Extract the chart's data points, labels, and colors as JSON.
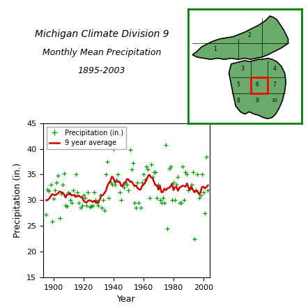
{
  "title_line1": "Michigan Climate Division 9",
  "title_line2": "Monthly Mean Precipitation",
  "title_line3": "1895-2003",
  "xlabel": "Year",
  "ylabel": "Precipitation (in.)",
  "xlim": [
    1893,
    2004
  ],
  "ylim": [
    15,
    45
  ],
  "yticks": [
    15,
    20,
    25,
    30,
    35,
    40,
    45
  ],
  "xticks": [
    1900,
    1920,
    1940,
    1960,
    1980,
    2000
  ],
  "legend_dot_label": "Precipitation (in.)",
  "legend_line_label": "9 year average",
  "dot_color": "#009900",
  "line_color": "#cc0000",
  "background_color": "#ffffff",
  "years": [
    1895,
    1896,
    1897,
    1898,
    1899,
    1900,
    1901,
    1902,
    1903,
    1904,
    1905,
    1906,
    1907,
    1908,
    1909,
    1910,
    1911,
    1912,
    1913,
    1914,
    1915,
    1916,
    1917,
    1918,
    1919,
    1920,
    1921,
    1922,
    1923,
    1924,
    1925,
    1926,
    1927,
    1928,
    1929,
    1930,
    1931,
    1932,
    1933,
    1934,
    1935,
    1936,
    1937,
    1938,
    1939,
    1940,
    1941,
    1942,
    1943,
    1944,
    1945,
    1946,
    1947,
    1948,
    1949,
    1950,
    1951,
    1952,
    1953,
    1954,
    1955,
    1956,
    1957,
    1958,
    1959,
    1960,
    1961,
    1962,
    1963,
    1964,
    1965,
    1966,
    1967,
    1968,
    1969,
    1970,
    1971,
    1972,
    1973,
    1974,
    1975,
    1976,
    1977,
    1978,
    1979,
    1980,
    1981,
    1982,
    1983,
    1984,
    1985,
    1986,
    1987,
    1988,
    1989,
    1990,
    1991,
    1992,
    1993,
    1994,
    1995,
    1996,
    1997,
    1998,
    1999,
    2000,
    2001,
    2002,
    2003
  ],
  "precip": [
    27.2,
    32.1,
    31.8,
    33.0,
    25.8,
    30.3,
    32.0,
    33.5,
    34.8,
    26.5,
    31.2,
    33.0,
    35.2,
    29.0,
    28.8,
    31.5,
    30.0,
    29.5,
    32.0,
    31.0,
    35.1,
    31.5,
    29.5,
    28.5,
    29.0,
    31.0,
    30.5,
    29.0,
    31.5,
    28.7,
    28.8,
    29.0,
    31.5,
    30.0,
    29.5,
    29.0,
    31.0,
    28.5,
    30.0,
    28.0,
    35.0,
    37.5,
    30.5,
    33.5,
    33.0,
    40.0,
    33.0,
    34.0,
    35.0,
    31.5,
    30.0,
    33.0,
    32.5,
    33.5,
    33.0,
    32.0,
    39.8,
    36.0,
    37.2,
    29.5,
    28.5,
    33.5,
    29.5,
    28.5,
    33.5,
    35.0,
    34.0,
    36.5,
    36.0,
    30.5,
    37.0,
    34.5,
    35.5,
    35.5,
    30.5,
    33.0,
    30.0,
    29.5,
    30.5,
    29.5,
    40.8,
    24.5,
    36.2,
    36.5,
    30.0,
    33.5,
    30.0,
    33.0,
    34.5,
    29.5,
    29.5,
    36.5,
    30.0,
    35.5,
    35.0,
    32.0,
    32.5,
    33.0,
    35.5,
    22.5,
    32.0,
    35.0,
    30.5,
    31.0,
    35.0,
    31.5,
    27.5,
    38.5,
    32.0
  ],
  "figsize": [
    4.42,
    4.42
  ],
  "dpi": 100
}
